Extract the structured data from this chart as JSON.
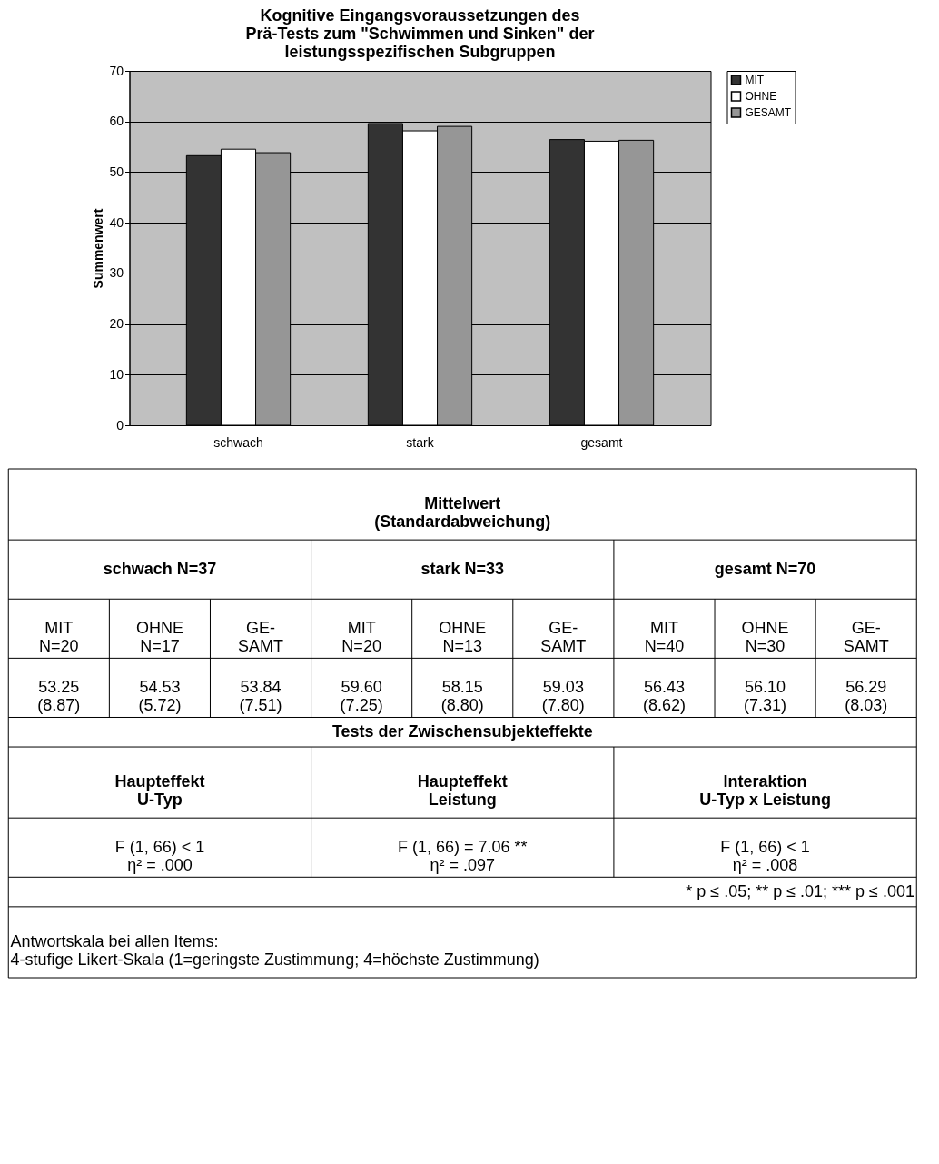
{
  "chart_data": {
    "type": "bar",
    "title": "Kognitive Eingangsvoraussetzungen des\nPrä-Tests zum \"Schwimmen und Sinken\" der\nleistungsspezifischen Subgruppen",
    "ylabel": "Summenwert",
    "categories": [
      "schwach",
      "stark",
      "gesamt"
    ],
    "series": [
      {
        "name": "MIT",
        "color": "#333333",
        "values": [
          53.25,
          59.6,
          56.43
        ]
      },
      {
        "name": "OHNE",
        "color": "#ffffff",
        "values": [
          54.53,
          58.15,
          56.1
        ]
      },
      {
        "name": "GESAMT",
        "color": "#969696",
        "values": [
          53.84,
          59.03,
          56.29
        ]
      }
    ],
    "ylim": [
      0,
      70
    ],
    "yticks": [
      0,
      10,
      20,
      30,
      40,
      50,
      60,
      70
    ],
    "grid": "y",
    "legend": "top right",
    "annotations": [
      "Mittelwert\n(Standardabweichung)",
      "schwach N=37",
      "stark N=33",
      "gesamt N=70",
      "MIT\nN=20",
      "OHNE\nN=17",
      "GE-\nSAMT",
      "MIT\nN=20",
      "OHNE\nN=13",
      "GE-\nSAMT",
      "MIT\nN=40",
      "OHNE\nN=30",
      "GE-\nSAMT",
      "53.25\n(8.87)",
      "54.53\n(5.72)",
      "53.84\n(7.51)",
      "59.60\n(7.25)",
      "58.15\n(8.80)",
      "59.03\n(7.80)",
      "56.43\n(8.62)",
      "56.10\n(7.31)",
      "56.29\n(8.03)",
      "Tests der Zwischensubjekteffekte",
      "Haupteffekt\nU-Typ",
      "Haupteffekt\nLeistung",
      "Interaktion\nU-Typ x Leistung",
      "F (1, 66) < 1\nη² = .000",
      "F (1, 66) = 7.06 **\nη² = .097",
      "F (1, 66) < 1\nη² = .008",
      "* p ≤ .05; ** p ≤ .01; *** p ≤ .001",
      "Antwortskala bei allen Items:\n4-stufige Likert-Skala (1=geringste Zustimmung; 4=höchste Zustimmung)"
    ]
  }
}
